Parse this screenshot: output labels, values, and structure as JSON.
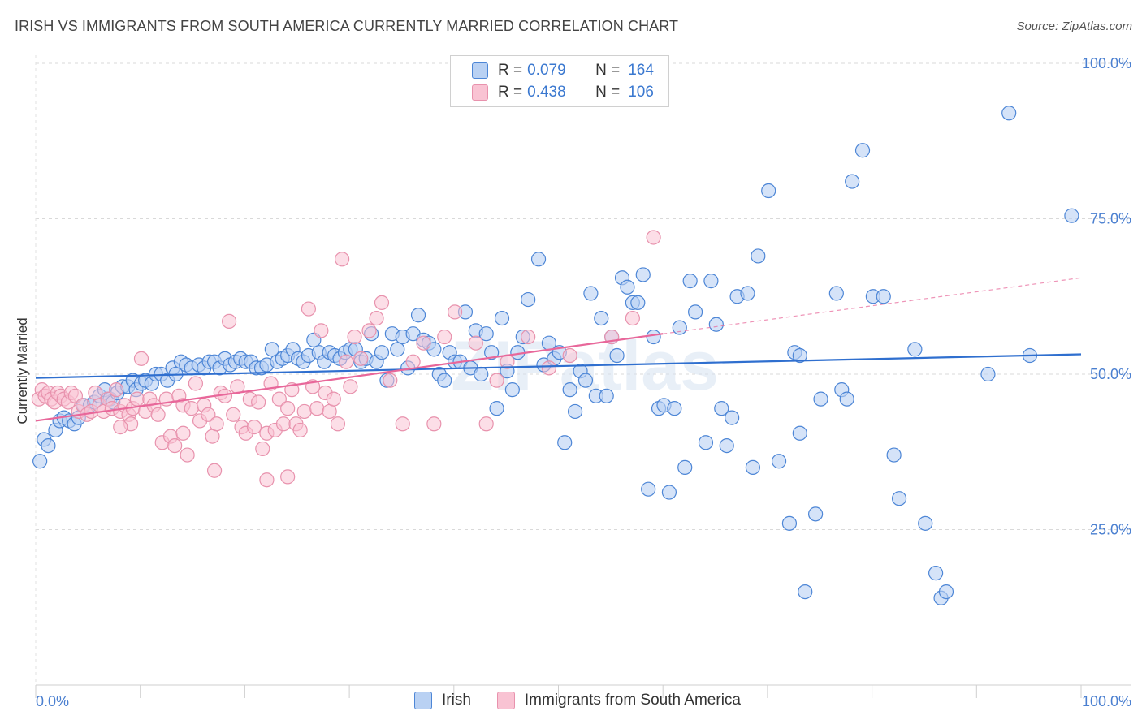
{
  "header": {
    "title": "IRISH VS IMMIGRANTS FROM SOUTH AMERICA CURRENTLY MARRIED CORRELATION CHART",
    "source": "Source: ZipAtlas.com"
  },
  "legend": {
    "irish": {
      "r_label": "R =",
      "r_value": "0.079",
      "n_label": "N =",
      "n_value": "164"
    },
    "south_america": {
      "r_label": "R =",
      "r_value": "0.438",
      "n_label": "N =",
      "n_value": "106"
    }
  },
  "bottom_legend": {
    "irish": "Irish",
    "south_america": "Immigrants from South America"
  },
  "watermark": "ZIPatlas",
  "colors": {
    "irish_fill": "#b9d1f3",
    "irish_stroke": "#4d86d6",
    "irish_line": "#2f6fcf",
    "sa_fill": "#f9c3d3",
    "sa_stroke": "#e892ad",
    "sa_line": "#e8679a",
    "tick": "#4a7fd0",
    "grid": "#d9d9d9"
  },
  "chart_data": {
    "type": "scatter",
    "title": "IRISH VS IMMIGRANTS FROM SOUTH AMERICA CURRENTLY MARRIED CORRELATION CHART",
    "xlabel": "",
    "ylabel": "Currently Married",
    "xlim": [
      0,
      100
    ],
    "ylim": [
      0,
      100
    ],
    "x_tick_labels": [
      "0.0%",
      "100.0%"
    ],
    "y_tick_labels": [
      "25.0%",
      "50.0%",
      "75.0%",
      "100.0%"
    ],
    "y_ticks": [
      25,
      50,
      75,
      100
    ],
    "grid": true,
    "legend_position": "top-center",
    "series": [
      {
        "name": "Irish",
        "R": 0.079,
        "N": 164,
        "trend": {
          "x": [
            0,
            100
          ],
          "y": [
            49.4,
            53.2
          ]
        },
        "points": [
          [
            0.4,
            36
          ],
          [
            0.8,
            39.5
          ],
          [
            1.2,
            38.5
          ],
          [
            1.9,
            41
          ],
          [
            2.3,
            42.5
          ],
          [
            2.7,
            43
          ],
          [
            3.2,
            42.5
          ],
          [
            3.7,
            42
          ],
          [
            4.1,
            43
          ],
          [
            4.6,
            45
          ],
          [
            5.2,
            45
          ],
          [
            5.6,
            45.5
          ],
          [
            6.1,
            46.5
          ],
          [
            6.6,
            47.5
          ],
          [
            7.1,
            46
          ],
          [
            7.4,
            45.5
          ],
          [
            7.8,
            47
          ],
          [
            8.3,
            48
          ],
          [
            8.8,
            48
          ],
          [
            9.3,
            49
          ],
          [
            9.6,
            47.5
          ],
          [
            10.1,
            48.5
          ],
          [
            10.5,
            49
          ],
          [
            11.1,
            48.5
          ],
          [
            11.5,
            50
          ],
          [
            12,
            50
          ],
          [
            12.6,
            49
          ],
          [
            13.1,
            51
          ],
          [
            13.4,
            50
          ],
          [
            13.9,
            52
          ],
          [
            14.4,
            51.5
          ],
          [
            14.9,
            51
          ],
          [
            15.6,
            51.5
          ],
          [
            16.1,
            51
          ],
          [
            16.6,
            52
          ],
          [
            17.1,
            52
          ],
          [
            17.6,
            51
          ],
          [
            18.1,
            52.5
          ],
          [
            18.6,
            51.5
          ],
          [
            19.1,
            52
          ],
          [
            19.6,
            52.5
          ],
          [
            20.1,
            52
          ],
          [
            20.6,
            52
          ],
          [
            21.1,
            51
          ],
          [
            21.6,
            51
          ],
          [
            22.1,
            51.5
          ],
          [
            22.6,
            54
          ],
          [
            23.1,
            52
          ],
          [
            23.6,
            52.5
          ],
          [
            24.1,
            53
          ],
          [
            24.6,
            54
          ],
          [
            25.1,
            52.5
          ],
          [
            25.6,
            52
          ],
          [
            26.1,
            53
          ],
          [
            26.6,
            55.5
          ],
          [
            27.1,
            53.5
          ],
          [
            27.6,
            52
          ],
          [
            28.1,
            53.5
          ],
          [
            28.6,
            53
          ],
          [
            29.1,
            52.5
          ],
          [
            29.6,
            53.5
          ],
          [
            30.1,
            54
          ],
          [
            30.6,
            54
          ],
          [
            31.1,
            52
          ],
          [
            31.6,
            52.5
          ],
          [
            32.1,
            56.5
          ],
          [
            32.6,
            52
          ],
          [
            33.1,
            53.5
          ],
          [
            33.6,
            49
          ],
          [
            34.1,
            56.5
          ],
          [
            34.6,
            54
          ],
          [
            35.1,
            56
          ],
          [
            35.6,
            51
          ],
          [
            36.1,
            56.5
          ],
          [
            36.6,
            59.5
          ],
          [
            37.1,
            55.5
          ],
          [
            37.6,
            55
          ],
          [
            38.1,
            54
          ],
          [
            38.6,
            50
          ],
          [
            39.1,
            49
          ],
          [
            39.6,
            53.5
          ],
          [
            40.1,
            52
          ],
          [
            40.6,
            52
          ],
          [
            41.1,
            60
          ],
          [
            41.6,
            51
          ],
          [
            42.1,
            57
          ],
          [
            42.6,
            50
          ],
          [
            43.1,
            56.5
          ],
          [
            43.6,
            53.5
          ],
          [
            44.1,
            44.5
          ],
          [
            44.6,
            59
          ],
          [
            45.1,
            50.5
          ],
          [
            45.6,
            47.5
          ],
          [
            46.1,
            53.5
          ],
          [
            46.6,
            56
          ],
          [
            47.1,
            62
          ],
          [
            48.1,
            68.5
          ],
          [
            48.6,
            51.5
          ],
          [
            49.1,
            55
          ],
          [
            49.6,
            52.5
          ],
          [
            50.1,
            53.5
          ],
          [
            50.6,
            39
          ],
          [
            51.1,
            47.5
          ],
          [
            51.6,
            44
          ],
          [
            52.1,
            50.5
          ],
          [
            52.6,
            49
          ],
          [
            53.1,
            63
          ],
          [
            53.6,
            46.5
          ],
          [
            54.1,
            59
          ],
          [
            54.6,
            46.5
          ],
          [
            55.1,
            56
          ],
          [
            55.6,
            53
          ],
          [
            56.1,
            65.5
          ],
          [
            56.6,
            64
          ],
          [
            57.1,
            61.5
          ],
          [
            57.6,
            61.5
          ],
          [
            58.1,
            66
          ],
          [
            58.6,
            31.5
          ],
          [
            59.1,
            56
          ],
          [
            59.6,
            44.5
          ],
          [
            60.1,
            45
          ],
          [
            60.6,
            31
          ],
          [
            61.1,
            44.5
          ],
          [
            61.6,
            57.5
          ],
          [
            62.1,
            35
          ],
          [
            62.6,
            65
          ],
          [
            63.1,
            60
          ],
          [
            64.1,
            39
          ],
          [
            64.6,
            65
          ],
          [
            65.1,
            58
          ],
          [
            65.6,
            44.5
          ],
          [
            66.1,
            38.5
          ],
          [
            66.6,
            43
          ],
          [
            67.1,
            62.5
          ],
          [
            68.1,
            63
          ],
          [
            68.6,
            35
          ],
          [
            69.1,
            69
          ],
          [
            70.1,
            79.5
          ],
          [
            71.1,
            36
          ],
          [
            72.1,
            26
          ],
          [
            72.6,
            53.5
          ],
          [
            73.1,
            53
          ],
          [
            73.6,
            15
          ],
          [
            74.6,
            27.5
          ],
          [
            75.1,
            46
          ],
          [
            76.6,
            63
          ],
          [
            77.1,
            47.5
          ],
          [
            77.6,
            46
          ],
          [
            78.1,
            81
          ],
          [
            79.1,
            86
          ],
          [
            80.1,
            62.5
          ],
          [
            81.1,
            62.5
          ],
          [
            82.1,
            37
          ],
          [
            82.6,
            30
          ],
          [
            84.1,
            54
          ],
          [
            85.1,
            26
          ],
          [
            86.1,
            18
          ],
          [
            86.6,
            14
          ],
          [
            87.1,
            15
          ],
          [
            91.1,
            50
          ],
          [
            93.1,
            92
          ],
          [
            99.1,
            75.5
          ],
          [
            95.1,
            53
          ],
          [
            73.1,
            40.5
          ]
        ]
      },
      {
        "name": "Immigrants from South America",
        "R": 0.438,
        "N": 106,
        "trend": {
          "x": [
            0,
            60
          ],
          "y": [
            42.5,
            56.5
          ]
        },
        "trend_extended": {
          "x": [
            60,
            100
          ],
          "y": [
            56.5,
            65.5
          ]
        },
        "points": [
          [
            0.3,
            46
          ],
          [
            0.6,
            47.5
          ],
          [
            0.9,
            46.5
          ],
          [
            1.2,
            47
          ],
          [
            1.5,
            46
          ],
          [
            1.8,
            45.5
          ],
          [
            2.1,
            47
          ],
          [
            2.4,
            46.5
          ],
          [
            2.7,
            46
          ],
          [
            3.1,
            45.5
          ],
          [
            3.4,
            47
          ],
          [
            3.8,
            46.5
          ],
          [
            4.1,
            44
          ],
          [
            4.5,
            45
          ],
          [
            4.9,
            43.5
          ],
          [
            5.3,
            44
          ],
          [
            5.7,
            47
          ],
          [
            6.1,
            45
          ],
          [
            6.5,
            44
          ],
          [
            6.9,
            46
          ],
          [
            7.3,
            44.5
          ],
          [
            7.7,
            47.5
          ],
          [
            8.1,
            44
          ],
          [
            8.5,
            45
          ],
          [
            8.9,
            43.5
          ],
          [
            9.3,
            44.5
          ],
          [
            9.7,
            46
          ],
          [
            10.1,
            52.5
          ],
          [
            10.5,
            44
          ],
          [
            10.9,
            46
          ],
          [
            11.3,
            45
          ],
          [
            11.7,
            43.5
          ],
          [
            12.1,
            39
          ],
          [
            12.5,
            46
          ],
          [
            12.9,
            40
          ],
          [
            13.3,
            38.5
          ],
          [
            13.7,
            46.5
          ],
          [
            14.1,
            45
          ],
          [
            14.5,
            37
          ],
          [
            14.9,
            44.5
          ],
          [
            15.3,
            48.5
          ],
          [
            15.7,
            42.5
          ],
          [
            16.1,
            45
          ],
          [
            16.5,
            43.5
          ],
          [
            16.9,
            40
          ],
          [
            17.3,
            42
          ],
          [
            17.7,
            47
          ],
          [
            18.1,
            46.5
          ],
          [
            18.5,
            58.5
          ],
          [
            18.9,
            43.5
          ],
          [
            19.3,
            48
          ],
          [
            19.7,
            41.5
          ],
          [
            20.1,
            40.5
          ],
          [
            20.5,
            46
          ],
          [
            20.9,
            41.5
          ],
          [
            21.3,
            45.5
          ],
          [
            21.7,
            38
          ],
          [
            22.1,
            40.5
          ],
          [
            22.5,
            48.5
          ],
          [
            22.9,
            41
          ],
          [
            23.3,
            46
          ],
          [
            23.7,
            42
          ],
          [
            24.1,
            44.5
          ],
          [
            24.5,
            47.5
          ],
          [
            24.9,
            42
          ],
          [
            25.3,
            41
          ],
          [
            25.7,
            44
          ],
          [
            26.1,
            60.5
          ],
          [
            26.5,
            48
          ],
          [
            26.9,
            44.5
          ],
          [
            27.3,
            57
          ],
          [
            27.7,
            47
          ],
          [
            28.1,
            44
          ],
          [
            28.5,
            46
          ],
          [
            28.9,
            42
          ],
          [
            29.3,
            68.5
          ],
          [
            29.7,
            52
          ],
          [
            30.1,
            48
          ],
          [
            30.5,
            56
          ],
          [
            31.1,
            52.5
          ],
          [
            31.9,
            57
          ],
          [
            32.6,
            59
          ],
          [
            33.1,
            61.5
          ],
          [
            33.9,
            49
          ],
          [
            35.1,
            42
          ],
          [
            36.1,
            52
          ],
          [
            37.1,
            55
          ],
          [
            38.1,
            42
          ],
          [
            39.1,
            56
          ],
          [
            40.1,
            60
          ],
          [
            42.1,
            55
          ],
          [
            43.1,
            42
          ],
          [
            44.1,
            49
          ],
          [
            45.1,
            52
          ],
          [
            47.1,
            56
          ],
          [
            49.1,
            51
          ],
          [
            51.1,
            53
          ],
          [
            55.1,
            56
          ],
          [
            57.1,
            59
          ],
          [
            59.1,
            72
          ],
          [
            17.1,
            34.5
          ],
          [
            22.1,
            33
          ],
          [
            24.1,
            33.5
          ],
          [
            14.1,
            40.5
          ],
          [
            9.1,
            42
          ],
          [
            8.1,
            41.5
          ]
        ]
      }
    ]
  }
}
